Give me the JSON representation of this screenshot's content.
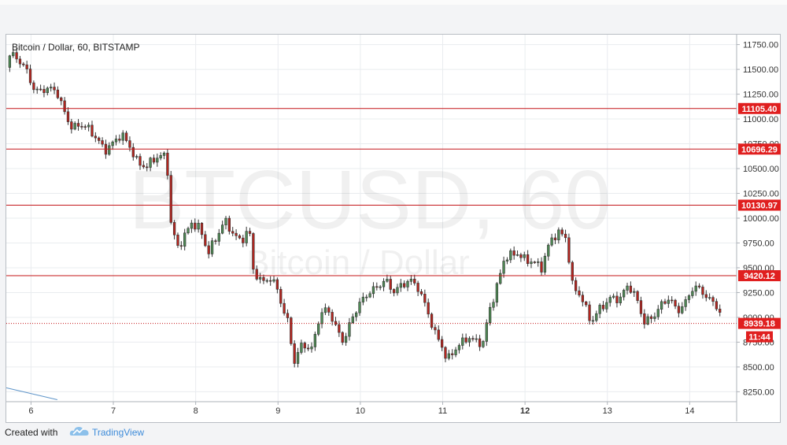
{
  "header": {
    "symbol_title": "Bitcoin / Dollar, 60, BITSTAMP"
  },
  "watermark": {
    "line1": "BTCUSD, 60",
    "line2": "Bitcoin / Dollar"
  },
  "footer": {
    "created_with": "Created with",
    "brand": "TradingView",
    "logo_icon": "tradingview-cloud-icon"
  },
  "colors": {
    "up_candle": "#4f8a55",
    "down_candle": "#b5251f",
    "level_line": "#c4171a",
    "level_label_bg": "#e01f1f",
    "price_label_bg": "#e01f1f",
    "trend_line": "#5f95c9"
  },
  "chart_data": {
    "type": "candlestick",
    "title": "Bitcoin / Dollar, 60, BITSTAMP",
    "xlabel": "",
    "ylabel": "",
    "ylim": [
      8150,
      11850
    ],
    "grid": true,
    "x_ticks": [
      "6",
      "7",
      "8",
      "9",
      "10",
      "11",
      "12",
      "13",
      "14"
    ],
    "x_tick_days": [
      6,
      7,
      8,
      9,
      10,
      11,
      12,
      13,
      14
    ],
    "x_tick_bold": [
      "12"
    ],
    "x_range_days": [
      5.7,
      14.57
    ],
    "y_ticks": [
      "11750.00",
      "11500.00",
      "11250.00",
      "11000.00",
      "10750.00",
      "10500.00",
      "10250.00",
      "10000.00",
      "9750.00",
      "9500.00",
      "9250.00",
      "9000.00",
      "8750.00",
      "8500.00",
      "8250.00"
    ],
    "y_tick_values": [
      11750,
      11500,
      11250,
      11000,
      10750,
      10500,
      10250,
      10000,
      9750,
      9500,
      9250,
      9000,
      8750,
      8500,
      8250
    ],
    "horizontal_levels": [
      {
        "value": 11105.4,
        "label": "11105.40"
      },
      {
        "value": 10696.29,
        "label": "10696.29"
      },
      {
        "value": 10130.97,
        "label": "10130.97"
      },
      {
        "value": 9420.12,
        "label": "9420.12"
      }
    ],
    "last_price": {
      "value": 8939.18,
      "label": "8939.18",
      "countdown": "11:44"
    },
    "trend_line": {
      "from": [
        5.7,
        8290
      ],
      "to": [
        6.32,
        8170
      ]
    },
    "close_path": [
      [
        5.7,
        11520
      ],
      [
        5.75,
        11660
      ],
      [
        5.85,
        11600
      ],
      [
        5.95,
        11480
      ],
      [
        6.05,
        11270
      ],
      [
        6.15,
        11300
      ],
      [
        6.3,
        11300
      ],
      [
        6.4,
        11080
      ],
      [
        6.5,
        10900
      ],
      [
        6.6,
        10950
      ],
      [
        6.7,
        10900
      ],
      [
        6.8,
        10800
      ],
      [
        6.9,
        10680
      ],
      [
        7.0,
        10760
      ],
      [
        7.1,
        10850
      ],
      [
        7.2,
        10720
      ],
      [
        7.3,
        10550
      ],
      [
        7.4,
        10520
      ],
      [
        7.5,
        10600
      ],
      [
        7.6,
        10640
      ],
      [
        7.65,
        10580
      ],
      [
        7.7,
        9950
      ],
      [
        7.78,
        9700
      ],
      [
        7.85,
        9800
      ],
      [
        7.95,
        9950
      ],
      [
        8.05,
        9900
      ],
      [
        8.15,
        9650
      ],
      [
        8.25,
        9800
      ],
      [
        8.35,
        9980
      ],
      [
        8.45,
        9850
      ],
      [
        8.55,
        9760
      ],
      [
        8.65,
        9900
      ],
      [
        8.7,
        9480
      ],
      [
        8.8,
        9350
      ],
      [
        8.9,
        9400
      ],
      [
        9.0,
        9280
      ],
      [
        9.05,
        9100
      ],
      [
        9.12,
        8950
      ],
      [
        9.2,
        8550
      ],
      [
        9.3,
        8750
      ],
      [
        9.4,
        8650
      ],
      [
        9.5,
        9000
      ],
      [
        9.6,
        9100
      ],
      [
        9.7,
        8900
      ],
      [
        9.8,
        8750
      ],
      [
        9.9,
        9000
      ],
      [
        10.0,
        9150
      ],
      [
        10.1,
        9250
      ],
      [
        10.2,
        9300
      ],
      [
        10.3,
        9380
      ],
      [
        10.4,
        9260
      ],
      [
        10.5,
        9320
      ],
      [
        10.6,
        9380
      ],
      [
        10.7,
        9300
      ],
      [
        10.8,
        9100
      ],
      [
        10.9,
        8850
      ],
      [
        11.0,
        8700
      ],
      [
        11.05,
        8560
      ],
      [
        11.15,
        8680
      ],
      [
        11.3,
        8800
      ],
      [
        11.4,
        8760
      ],
      [
        11.5,
        8740
      ],
      [
        11.55,
        9030
      ],
      [
        11.65,
        9280
      ],
      [
        11.75,
        9600
      ],
      [
        11.9,
        9650
      ],
      [
        12.0,
        9580
      ],
      [
        12.1,
        9560
      ],
      [
        12.2,
        9500
      ],
      [
        12.3,
        9760
      ],
      [
        12.4,
        9860
      ],
      [
        12.5,
        9800
      ],
      [
        12.58,
        9300
      ],
      [
        12.68,
        9220
      ],
      [
        12.8,
        8950
      ],
      [
        12.9,
        9080
      ],
      [
        13.05,
        9200
      ],
      [
        13.15,
        9180
      ],
      [
        13.25,
        9330
      ],
      [
        13.35,
        9200
      ],
      [
        13.45,
        8950
      ],
      [
        13.55,
        9000
      ],
      [
        13.65,
        9120
      ],
      [
        13.75,
        9200
      ],
      [
        13.85,
        9060
      ],
      [
        13.95,
        9150
      ],
      [
        14.05,
        9320
      ],
      [
        14.15,
        9260
      ],
      [
        14.25,
        9170
      ],
      [
        14.35,
        9100
      ],
      [
        14.4,
        8939
      ]
    ]
  }
}
